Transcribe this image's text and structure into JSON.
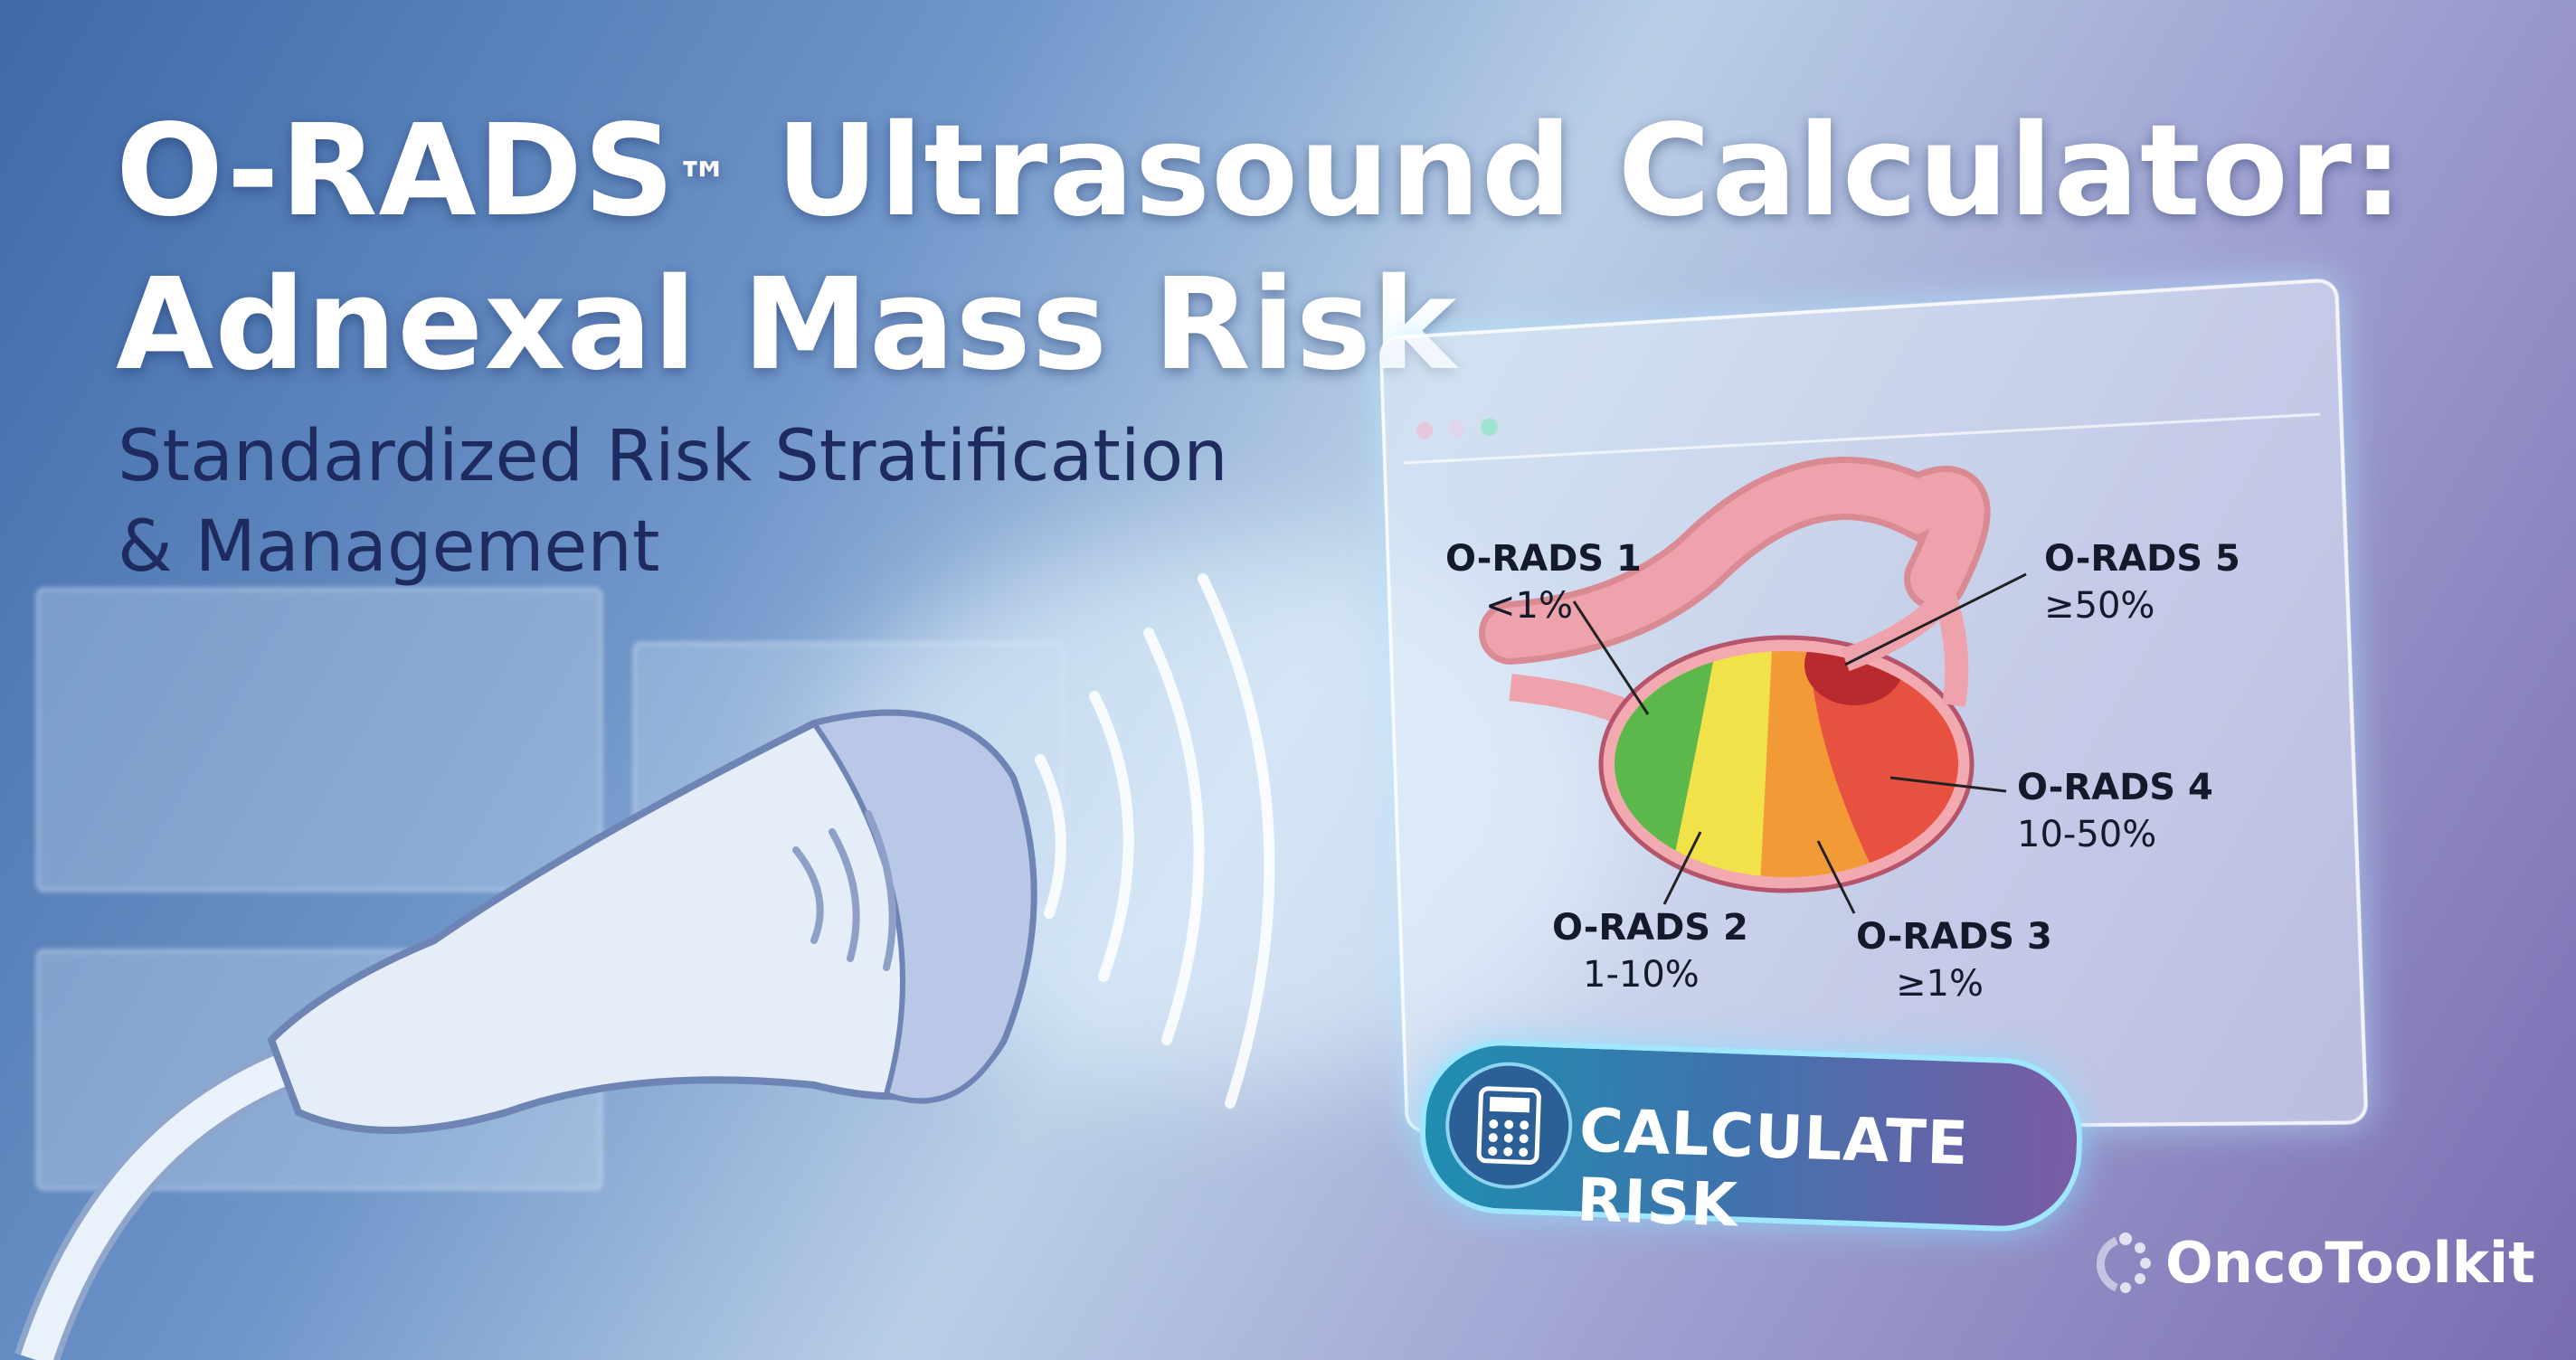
{
  "header": {
    "title_line1": "O-RADS",
    "trademark": "™",
    "title_line1_rest": " Ultrasound Calculator:",
    "title_line2": "Adnexal Mass Risk",
    "subtitle_line1": "Standardized Risk Stratification",
    "subtitle_line2": "& Management"
  },
  "diagram": {
    "categories": [
      {
        "label": "O-RADS 1",
        "risk": "<1%",
        "color": "#5cb84a"
      },
      {
        "label": "O-RADS 2",
        "risk": "1-10%",
        "color": "#f2e24a"
      },
      {
        "label": "O-RADS 3",
        "risk": "≥1%",
        "color": "#f29a36"
      },
      {
        "label": "O-RADS 4",
        "risk": "10-50%",
        "color": "#e8503f"
      },
      {
        "label": "O-RADS 5",
        "risk": "≥50%",
        "color": "#b82a2e"
      }
    ]
  },
  "button": {
    "label": "CALCULATE RISK",
    "icon": "calculator-icon"
  },
  "brand": {
    "name": "OncoToolkit"
  }
}
